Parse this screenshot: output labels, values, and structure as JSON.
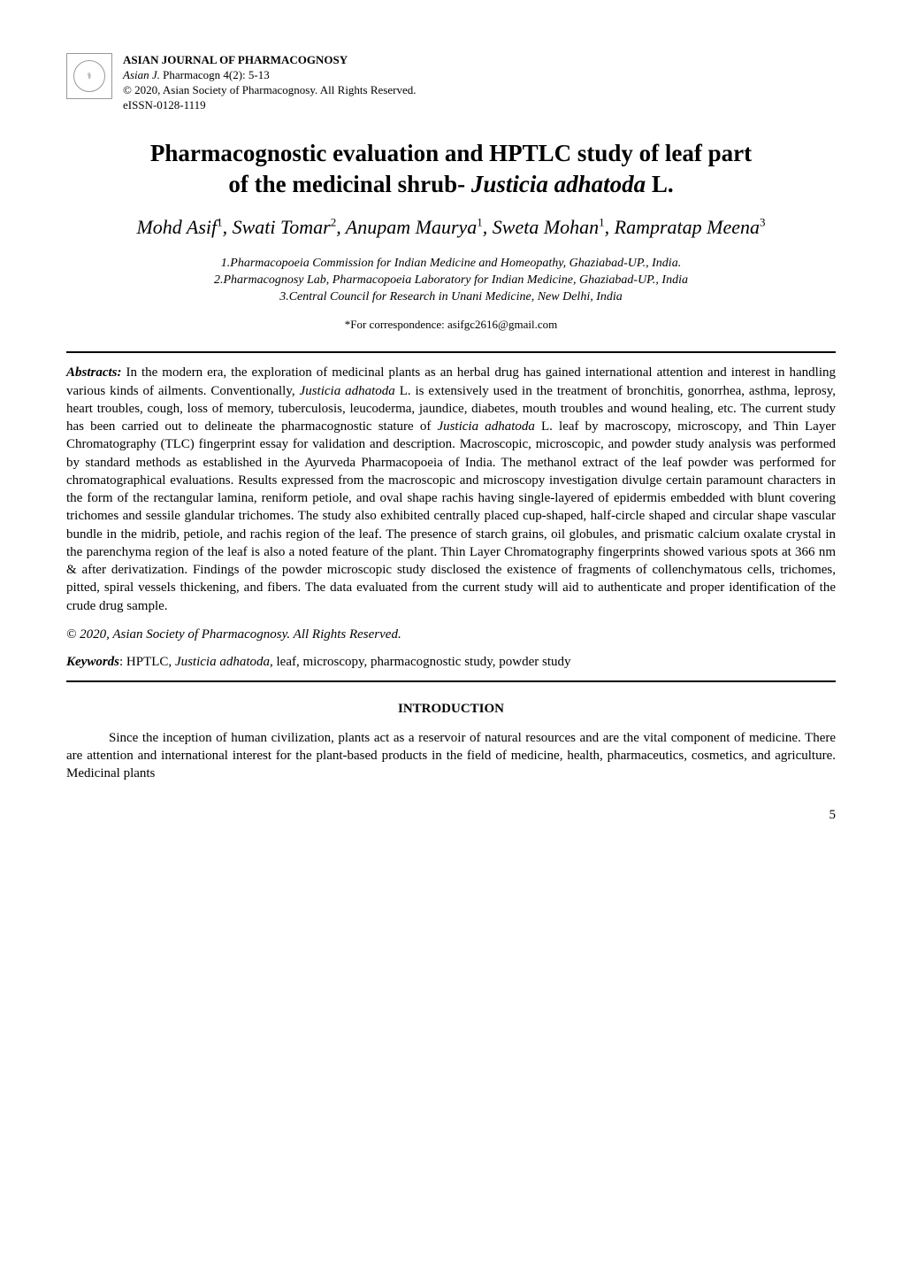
{
  "journal": {
    "name": "ASIAN JOURNAL OF PHARMACOGNOSY",
    "citation_prefix": "Asian J. ",
    "citation_rest": "Pharmacogn 4(2): 5-13",
    "copyright_line": "© 2020, Asian Society of Pharmacognosy. All Rights Reserved.",
    "eissn": "eISSN-0128-1119"
  },
  "title": {
    "line1": "Pharmacognostic evaluation and HPTLC study of leaf part",
    "line2_pre": "of the medicinal shrub- ",
    "line2_species": "Justicia adhatoda",
    "line2_post": " L."
  },
  "authors": {
    "a1_name": "Mohd Asif",
    "a1_sup": "1",
    "a2_name": "Swati Tomar",
    "a2_sup": "2",
    "a3_name": "Anupam Maurya",
    "a3_sup": "1",
    "a4_name": "Sweta Mohan",
    "a4_sup": "1",
    "a5_name": "Rampratap Meena",
    "a5_sup": "3"
  },
  "affiliations": {
    "aff1": "1.Pharmacopoeia Commission for Indian Medicine and Homeopathy, Ghaziabad-UP., India.",
    "aff2": "2.Pharmacognosy Lab, Pharmacopoeia Laboratory for Indian Medicine, Ghaziabad-UP., India",
    "aff3": "3.Central Council for Research in Unani Medicine, New Delhi, India"
  },
  "correspondence": "*For correspondence: asifgc2616@gmail.com",
  "abstract": {
    "label": "Abstracts:",
    "part1": " In the modern era, the exploration of medicinal plants as an herbal drug has gained international attention and interest in handling various kinds of ailments. Conventionally, ",
    "sp1": "Justicia adhatoda",
    "part2": " L. is extensively used in the treatment of bronchitis, gonorrhea, asthma, leprosy, heart troubles, cough, loss of memory, tuberculosis, leucoderma, jaundice, diabetes, mouth troubles and wound healing, etc. The current study has been carried out to delineate the pharmacognostic stature of ",
    "sp2": "Justicia adhatoda",
    "part3": " L. leaf by macroscopy, microscopy, and Thin Layer Chromatography (TLC) fingerprint essay for validation and description. Macroscopic, microscopic, and powder study analysis was performed by standard methods as established in the Ayurveda Pharmacopoeia of India. The methanol extract of the leaf powder was performed for chromatographical evaluations. Results expressed from the macroscopic and microscopy investigation divulge certain paramount characters in the form of the rectangular lamina, reniform petiole, and oval shape rachis having single-layered of epidermis embedded with blunt covering trichomes and sessile glandular trichomes. The study also exhibited centrally placed cup-shaped, half-circle shaped and circular shape vascular bundle in the midrib, petiole, and rachis region of the leaf. The presence of starch grains, oil globules, and prismatic calcium oxalate crystal in the parenchyma region of the leaf is also a noted feature of the plant. Thin Layer Chromatography fingerprints showed various spots at 366 nm & after derivatization. Findings of the powder microscopic study disclosed the existence of fragments of collenchymatous cells, trichomes, pitted, spiral vessels thickening, and fibers. The data evaluated from the current study will aid to authenticate and proper identification of the crude drug sample."
  },
  "copyright_statement": "© 2020, Asian Society of Pharmacognosy. All Rights Reserved.",
  "keywords": {
    "label": "Keywords",
    "sep": ": ",
    "pre": "HPTLC, ",
    "sp": "Justicia adhatoda",
    "post": ", leaf, microscopy, pharmacognostic study, powder study"
  },
  "introduction": {
    "heading": "INTRODUCTION",
    "body": "Since the inception of human civilization, plants act as a reservoir of natural resources and are the vital component of medicine. There are attention and international interest for the plant-based products in the field of medicine, health, pharmaceutics, cosmetics, and agriculture. Medicinal plants"
  },
  "page_number": "5"
}
